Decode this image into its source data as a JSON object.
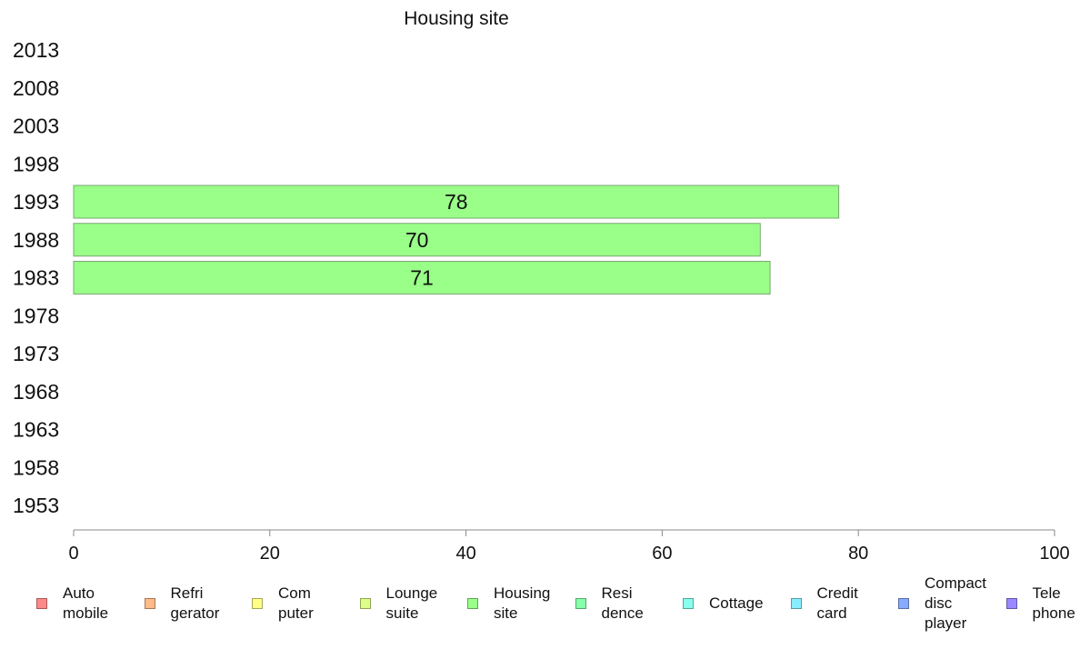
{
  "chart_data": {
    "type": "bar",
    "orientation": "horizontal",
    "title": "Housing site",
    "categories": [
      "2013",
      "2008",
      "2003",
      "1998",
      "1993",
      "1988",
      "1983",
      "1978",
      "1973",
      "1968",
      "1963",
      "1958",
      "1953"
    ],
    "series": [
      {
        "name": "Housing site",
        "values": [
          null,
          null,
          null,
          null,
          78,
          70,
          71,
          null,
          null,
          null,
          null,
          null,
          null
        ]
      }
    ],
    "xlim": [
      0,
      100
    ],
    "xticks": [
      "0",
      "20",
      "40",
      "60",
      "80",
      "100"
    ],
    "grid": false,
    "legend_position": "bottom",
    "bar_color": "#99ff88"
  },
  "legend": [
    {
      "label": "Auto\nmobile",
      "color": "#ff8888"
    },
    {
      "label": "Refri\ngerator",
      "color": "#ffbb88"
    },
    {
      "label": "Com\nputer",
      "color": "#ffff88"
    },
    {
      "label": "Lounge\nsuite",
      "color": "#ddff88"
    },
    {
      "label": "Housing\nsite",
      "color": "#99ff88"
    },
    {
      "label": "Resi\ndence",
      "color": "#88ffaa"
    },
    {
      "label": "Cottage",
      "color": "#88ffee"
    },
    {
      "label": "Credit\ncard",
      "color": "#88eeff"
    },
    {
      "label": "Compact\ndisc\nplayer",
      "color": "#88aaff"
    },
    {
      "label": "Tele\nphone",
      "color": "#9988ff"
    }
  ]
}
